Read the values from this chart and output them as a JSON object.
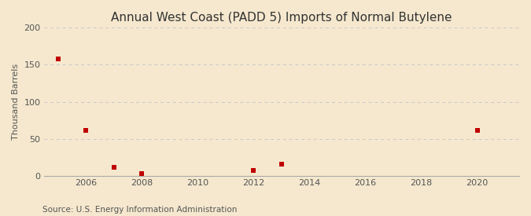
{
  "title": "Annual West Coast (PADD 5) Imports of Normal Butylene",
  "ylabel": "Thousand Barrels",
  "source": "Source: U.S. Energy Information Administration",
  "x_values": [
    2005,
    2006,
    2007,
    2008,
    2012,
    2013,
    2020
  ],
  "y_values": [
    158,
    61,
    12,
    3,
    7,
    16,
    61
  ],
  "xlim": [
    2004.5,
    2021.5
  ],
  "ylim": [
    0,
    200
  ],
  "yticks": [
    0,
    50,
    100,
    150,
    200
  ],
  "xticks": [
    2006,
    2008,
    2010,
    2012,
    2014,
    2016,
    2018,
    2020
  ],
  "marker_color": "#c00000",
  "marker_size": 5,
  "background_color": "#f5e8ce",
  "grid_color": "#c8c8c8",
  "title_fontsize": 11,
  "label_fontsize": 8,
  "tick_fontsize": 8,
  "source_fontsize": 7.5
}
